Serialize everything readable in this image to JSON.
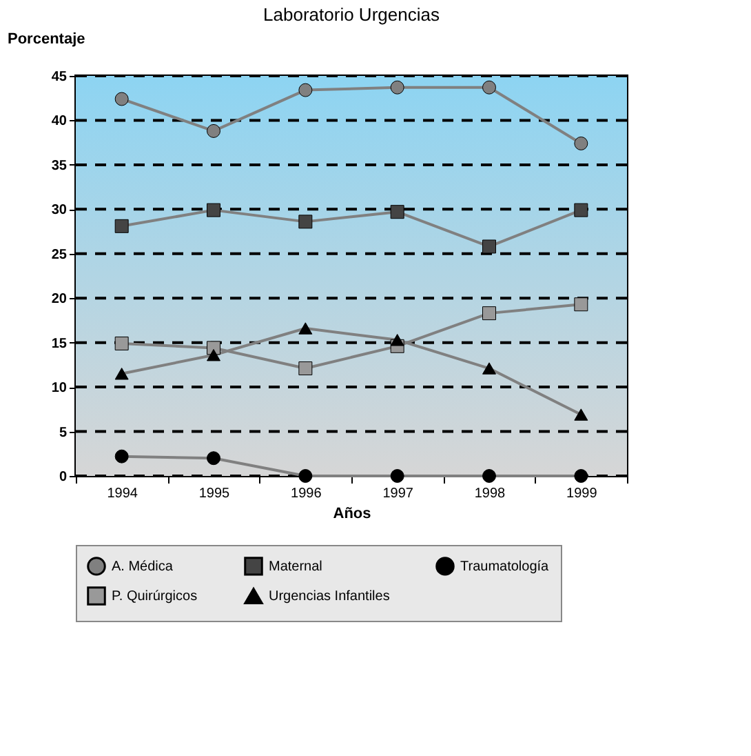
{
  "chart_data": {
    "type": "line",
    "title": "Laboratorio Urgencias",
    "xlabel": "Años",
    "ylabel": "Porcentaje",
    "categories": [
      "1994",
      "1995",
      "1996",
      "1997",
      "1998",
      "1999"
    ],
    "series": [
      {
        "name": "A. Médica",
        "color": "#808080",
        "marker": "circle",
        "values": [
          42.4,
          38.8,
          43.4,
          43.7,
          43.7,
          37.4
        ]
      },
      {
        "name": "Maternal",
        "color": "#444444",
        "marker": "square",
        "values": [
          28.1,
          29.9,
          28.6,
          29.7,
          25.8,
          29.9
        ]
      },
      {
        "name": "Traumatología",
        "color": "#000000",
        "marker": "circle",
        "values": [
          2.2,
          2.0,
          0,
          0,
          0,
          0
        ]
      },
      {
        "name": "P. Quirúrgicos",
        "color": "#999999",
        "marker": "square",
        "values": [
          14.9,
          14.4,
          12.1,
          14.6,
          18.3,
          19.3
        ]
      },
      {
        "name": "Urgencias Infantiles",
        "color": "#000000",
        "marker": "triangle",
        "values": [
          11.5,
          13.6,
          16.6,
          15.3,
          12.1,
          6.9
        ]
      }
    ],
    "ylim": [
      0,
      45
    ],
    "yticks": [
      0,
      5,
      10,
      15,
      20,
      25,
      30,
      35,
      40,
      45
    ],
    "grid": "y",
    "legend": "bottom",
    "line_style": "solid"
  }
}
